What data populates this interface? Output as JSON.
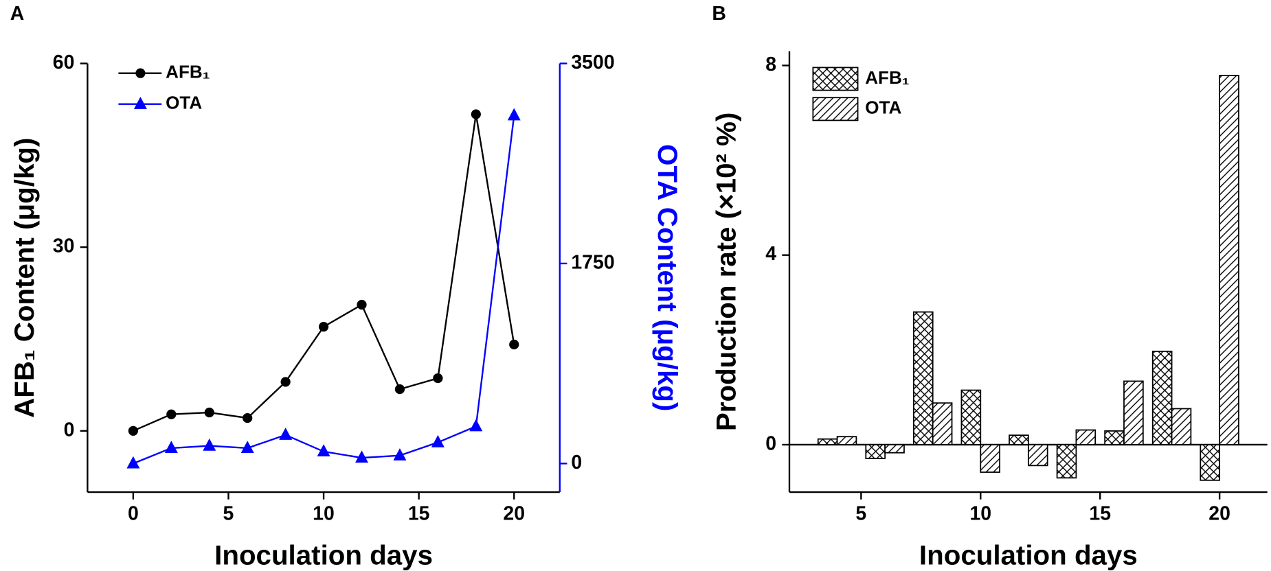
{
  "chart_data": [
    {
      "type": "line",
      "panel": "A",
      "xlabel": "Inoculation days",
      "ylabel": "AFB₁ Content (μg/kg)",
      "y2label": "OTA Content (μg/kg)",
      "x": [
        0,
        2,
        4,
        6,
        8,
        10,
        12,
        14,
        16,
        18,
        20
      ],
      "series": [
        {
          "name": "AFB₁",
          "color": "#000000",
          "marker": "circle",
          "values": [
            0,
            2.7,
            3.0,
            2.1,
            8.0,
            17.0,
            20.6,
            6.8,
            8.6,
            51.7,
            14.1
          ]
        },
        {
          "name": "OTA",
          "color": "#0000ff",
          "marker": "triangle",
          "axis": "y2",
          "values": [
            0,
            135,
            155,
            135,
            250,
            105,
            50,
            70,
            185,
            325,
            3045
          ]
        }
      ],
      "xlim": [
        -2.4,
        22.4
      ],
      "xticks": [
        0,
        5,
        10,
        15,
        20
      ],
      "ylim": [
        -10,
        60
      ],
      "yticks": [
        0,
        30,
        60
      ],
      "y2lim": [
        -250,
        3500
      ],
      "y2ticks": [
        0,
        1750,
        3500
      ],
      "y2color": "#0000ff",
      "legend": "upper left"
    },
    {
      "type": "bar",
      "panel": "B",
      "xlabel": "Inoculation days",
      "ylabel": "Production rate (×10² %)",
      "x": [
        4,
        6,
        8,
        10,
        12,
        14,
        16,
        18,
        20
      ],
      "series": [
        {
          "name": "AFB₁",
          "color": "#000000",
          "pattern": "crosshatch",
          "values": [
            0.12,
            -0.29,
            2.8,
            1.15,
            0.2,
            -0.7,
            0.29,
            1.97,
            -0.75
          ]
        },
        {
          "name": "OTA",
          "color": "#000000",
          "pattern": "diagonal",
          "values": [
            0.17,
            -0.17,
            0.88,
            -0.58,
            -0.44,
            0.31,
            1.34,
            0.76,
            7.79
          ]
        }
      ],
      "xlim": [
        2,
        22
      ],
      "xticks": [
        5,
        10,
        15,
        20
      ],
      "ylim": [
        -1,
        8.3
      ],
      "yticks": [
        0,
        4,
        8
      ],
      "legend": "upper left"
    }
  ]
}
